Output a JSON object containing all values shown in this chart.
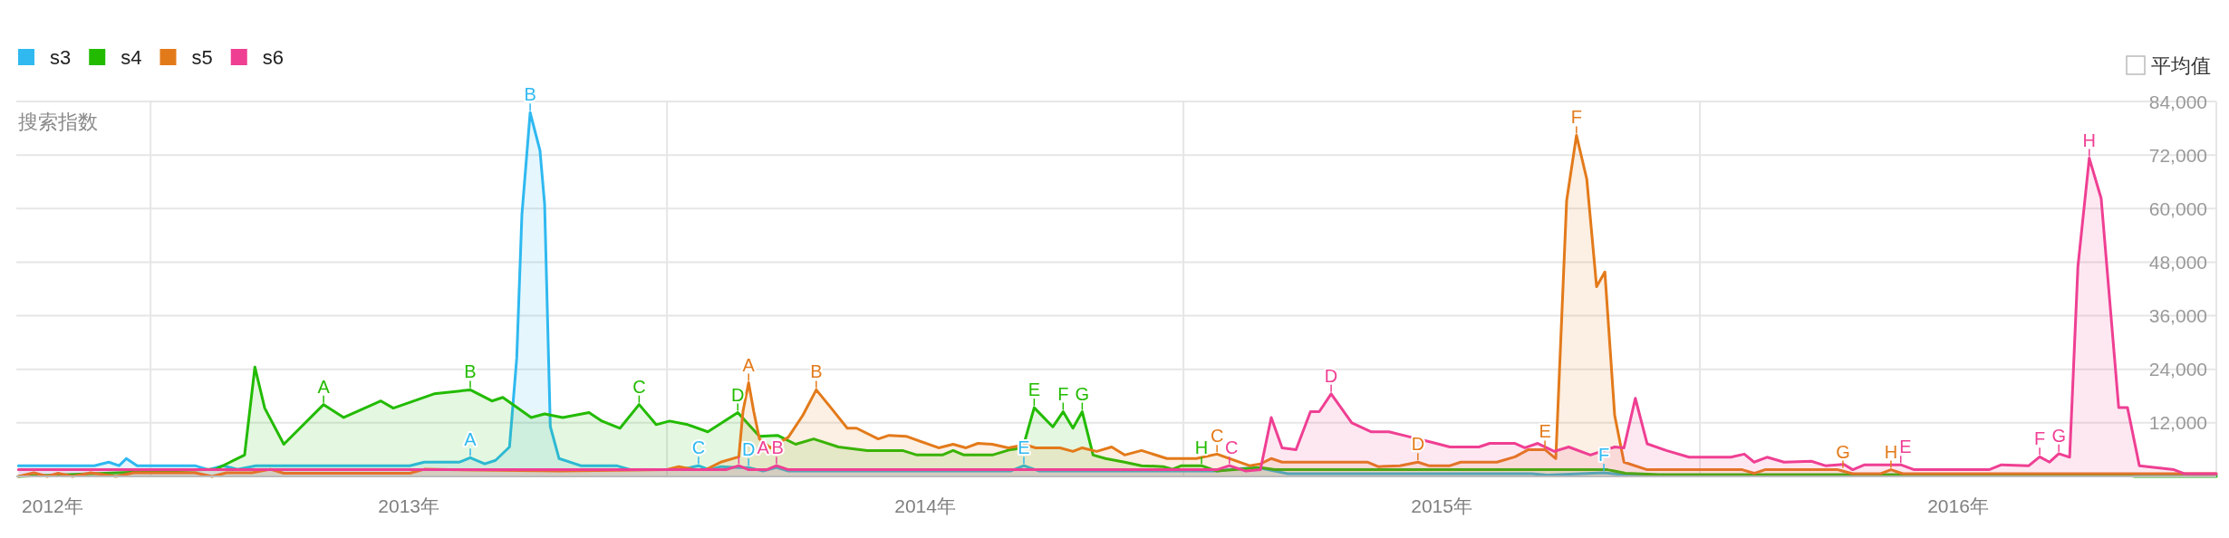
{
  "chart_data": {
    "type": "area",
    "ylabel": "搜索指数",
    "legend": "top left",
    "grid": true,
    "xlim": [
      2012.24,
      2016.5
    ],
    "xticks": [
      {
        "value": 2012.31,
        "label": "2012年"
      },
      {
        "value": 2012.5,
        "label": null
      },
      {
        "value": 2013,
        "label": "2013年"
      },
      {
        "value": 2013.5,
        "label": null
      },
      {
        "value": 2014,
        "label": "2014年"
      },
      {
        "value": 2014.5,
        "label": null
      },
      {
        "value": 2015,
        "label": "2015年"
      },
      {
        "value": 2015.5,
        "label": null
      },
      {
        "value": 2016,
        "label": "2016年"
      }
    ],
    "ylim": [
      0,
      84000
    ],
    "yticks": [
      {
        "value": 12000,
        "label": "12,000"
      },
      {
        "value": 24000,
        "label": "24,000"
      },
      {
        "value": 36000,
        "label": "36,000"
      },
      {
        "value": 48000,
        "label": "48,000"
      },
      {
        "value": 60000,
        "label": "60,000"
      },
      {
        "value": 72000,
        "label": "72,000"
      },
      {
        "value": 84000,
        "label": "84,000"
      }
    ],
    "series": [
      {
        "name": "s3",
        "color": "#2fb9f0",
        "x": [
          2012.244,
          2012.391,
          2012.419,
          2012.439,
          2012.453,
          2012.474,
          2012.586,
          2012.612,
          2012.64,
          2012.668,
          2012.704,
          2013.002,
          2013.03,
          2013.098,
          2013.119,
          2013.147,
          2013.168,
          2013.195,
          2013.209,
          2013.219,
          2013.235,
          2013.254,
          2013.263,
          2013.274,
          2013.291,
          2013.333,
          2013.402,
          2013.43,
          2013.526,
          2013.561,
          2013.582,
          2013.604,
          2013.639,
          2013.658,
          2013.686,
          2013.712,
          2013.735,
          2014.165,
          2014.191,
          2014.221,
          2014.565,
          2014.593,
          2014.642,
          2014.702,
          2015.175,
          2015.204,
          2015.314,
          2015.368,
          2016.5
        ],
        "values": [
          2400,
          2400,
          3200,
          2400,
          4000,
          2400,
          2400,
          1500,
          2400,
          1600,
          2400,
          2400,
          3200,
          3200,
          4200,
          2800,
          3600,
          6600,
          26500,
          58600,
          81500,
          73000,
          61000,
          11200,
          4000,
          2400,
          2400,
          1500,
          1500,
          2400,
          1500,
          2200,
          2000,
          2000,
          1200,
          2000,
          1200,
          1200,
          2400,
          1200,
          1200,
          1600,
          2000,
          600,
          600,
          300,
          800,
          200,
          200
        ]
      },
      {
        "name": "s4",
        "color": "#22bb00",
        "x": [
          2012.244,
          2012.626,
          2012.654,
          2012.682,
          2012.702,
          2012.721,
          2012.758,
          2012.835,
          2012.874,
          2012.946,
          2012.97,
          2013.049,
          2013.119,
          2013.161,
          2013.182,
          2013.237,
          2013.263,
          2013.298,
          2013.349,
          2013.374,
          2013.409,
          2013.446,
          2013.479,
          2013.505,
          2013.54,
          2013.579,
          2013.637,
          2013.679,
          2013.714,
          2013.749,
          2013.784,
          2013.832,
          2013.888,
          2013.956,
          2013.984,
          2014.033,
          2014.054,
          2014.075,
          2014.13,
          2014.165,
          2014.189,
          2014.211,
          2014.247,
          2014.267,
          2014.286,
          2014.304,
          2014.325,
          2014.349,
          2014.386,
          2014.419,
          2014.461,
          2014.479,
          2014.496,
          2014.535,
          2014.565,
          2014.649,
          2014.677,
          2015.321,
          2015.356,
          2015.421,
          2016.321,
          2016.342,
          2016.5
        ],
        "values": [
          0,
          1600,
          3200,
          4800,
          24500,
          15300,
          7200,
          16100,
          13200,
          16900,
          15300,
          18500,
          19400,
          16900,
          17700,
          13200,
          14000,
          13200,
          14300,
          12400,
          10800,
          16100,
          11600,
          12400,
          11600,
          10000,
          14300,
          9000,
          9200,
          7200,
          8400,
          6600,
          5800,
          5800,
          4800,
          4800,
          5800,
          4800,
          4800,
          6000,
          6400,
          15400,
          11100,
          14500,
          10800,
          14500,
          4800,
          4000,
          3200,
          2400,
          2200,
          1600,
          2400,
          2400,
          1200,
          2000,
          1500,
          1500,
          700,
          400,
          400,
          0,
          0
        ]
      },
      {
        "name": "s5",
        "color": "#e37a1a",
        "x": [
          2012.244,
          2012.274,
          2012.3,
          2012.321,
          2012.349,
          2012.384,
          2012.433,
          2012.467,
          2012.586,
          2012.619,
          2012.647,
          2012.696,
          2012.732,
          2012.758,
          2013.002,
          2013.03,
          2013.293,
          2013.498,
          2013.523,
          2013.554,
          2013.575,
          2013.604,
          2013.639,
          2013.647,
          2013.658,
          2013.668,
          2013.679,
          2013.7,
          2013.735,
          2013.763,
          2013.789,
          2013.818,
          2013.849,
          2013.867,
          2013.909,
          2013.93,
          2013.963,
          2014.026,
          2014.054,
          2014.079,
          2014.102,
          2014.13,
          2014.161,
          2014.193,
          2014.214,
          2014.261,
          2014.286,
          2014.304,
          2014.332,
          2014.361,
          2014.386,
          2014.419,
          2014.468,
          2014.525,
          2014.565,
          2014.628,
          2014.649,
          2014.67,
          2014.691,
          2014.856,
          2014.877,
          2014.919,
          2014.954,
          2014.975,
          2015.016,
          2015.037,
          2015.107,
          2015.142,
          2015.168,
          2015.2,
          2015.221,
          2015.242,
          2015.261,
          2015.281,
          2015.3,
          2015.316,
          2015.335,
          2015.353,
          2015.398,
          2015.582,
          2015.605,
          2015.626,
          2015.767,
          2015.796,
          2015.849,
          2015.87,
          2015.893,
          2016.5
        ],
        "values": [
          0,
          800,
          0,
          700,
          0,
          800,
          0,
          800,
          800,
          0,
          800,
          800,
          1600,
          700,
          700,
          1600,
          1200,
          1500,
          2200,
          1500,
          1500,
          3200,
          4400,
          14500,
          21000,
          14500,
          8400,
          6400,
          8800,
          13700,
          19400,
          15300,
          10800,
          10800,
          8400,
          9200,
          9000,
          6400,
          7200,
          6400,
          7400,
          7200,
          6400,
          7100,
          6400,
          6400,
          5600,
          6400,
          5600,
          6600,
          4800,
          5800,
          4000,
          4000,
          5000,
          2400,
          2800,
          4000,
          3200,
          3200,
          2200,
          2400,
          3200,
          2400,
          2400,
          3200,
          3200,
          4400,
          6000,
          6000,
          4000,
          61800,
          76400,
          66600,
          42500,
          45800,
          13700,
          3200,
          1500,
          1500,
          700,
          1500,
          1500,
          600,
          600,
          1500,
          600,
          600
        ]
      },
      {
        "name": "s6",
        "color": "#ef3f93",
        "x": [
          2012.244,
          2013.614,
          2013.639,
          2013.658,
          2013.693,
          2013.712,
          2013.735,
          2014.565,
          2014.589,
          2014.621,
          2014.649,
          2014.67,
          2014.691,
          2014.718,
          2014.746,
          2014.763,
          2014.786,
          2014.826,
          2014.863,
          2014.898,
          2014.933,
          2014.982,
          2015.016,
          2015.072,
          2015.093,
          2015.142,
          2015.161,
          2015.186,
          2015.218,
          2015.246,
          2015.288,
          2015.335,
          2015.353,
          2015.375,
          2015.398,
          2015.435,
          2015.479,
          2015.56,
          2015.586,
          2015.605,
          2015.63,
          2015.663,
          2015.716,
          2015.743,
          2015.779,
          2015.796,
          2015.819,
          2015.889,
          2015.915,
          2016.06,
          2016.084,
          2016.137,
          2016.158,
          2016.177,
          2016.195,
          2016.216,
          2016.232,
          2016.254,
          2016.277,
          2016.311,
          2016.328,
          2016.351,
          2016.418,
          2016.439,
          2016.5
        ],
        "values": [
          1500,
          1500,
          2400,
          1500,
          1500,
          2400,
          1500,
          1500,
          2400,
          1200,
          1500,
          13200,
          6400,
          6000,
          14500,
          14500,
          18500,
          12000,
          10000,
          10000,
          9000,
          7600,
          6600,
          6600,
          7400,
          7400,
          6400,
          7400,
          5600,
          6600,
          4800,
          6600,
          6400,
          17500,
          7300,
          5800,
          4300,
          4300,
          5000,
          3200,
          4300,
          3200,
          3400,
          2400,
          2700,
          1500,
          2600,
          2600,
          1500,
          1500,
          2600,
          2400,
          4400,
          3200,
          5100,
          4300,
          47000,
          71300,
          62300,
          15400,
          15400,
          2400,
          1500,
          600,
          600
        ]
      }
    ],
    "annotations": [
      "平均值",
      {
        "text": "A",
        "x": 2012.835,
        "y": 16100
      },
      {
        "text": "B",
        "x": 2013.119,
        "y": 19400
      },
      {
        "text": "C",
        "x": 2013.446,
        "y": 16100
      },
      {
        "text": "D",
        "x": 2013.637,
        "y": 14300
      },
      {
        "text": "E",
        "x": 2014.211,
        "y": 15400
      },
      {
        "text": "F",
        "x": 2014.267,
        "y": 14500
      },
      {
        "text": "G",
        "x": 2014.304,
        "y": 14500
      },
      {
        "text": "H",
        "x": 2014.535,
        "y": 2400
      },
      {
        "text": "A",
        "x": 2013.119,
        "y": 4200
      },
      {
        "text": "B",
        "x": 2013.235,
        "y": 81500
      },
      {
        "text": "C",
        "x": 2013.561,
        "y": 2400
      },
      {
        "text": "D",
        "x": 2013.658,
        "y": 2000
      },
      {
        "text": "E",
        "x": 2014.191,
        "y": 2400
      },
      {
        "text": "F",
        "x": 2015.314,
        "y": 800
      },
      {
        "text": "A",
        "x": 2013.658,
        "y": 21000
      },
      {
        "text": "B",
        "x": 2013.789,
        "y": 19400
      },
      {
        "text": "C",
        "x": 2014.565,
        "y": 5000
      },
      {
        "text": "D",
        "x": 2014.954,
        "y": 3200
      },
      {
        "text": "E",
        "x": 2015.2,
        "y": 6000
      },
      {
        "text": "F",
        "x": 2015.261,
        "y": 76400
      },
      {
        "text": "G",
        "x": 2015.777,
        "y": 1500
      },
      {
        "text": "H",
        "x": 2015.87,
        "y": 1500
      },
      {
        "text": "A",
        "x": 2013.639,
        "y": 2400
      },
      {
        "text": "B",
        "x": 2013.712,
        "y": 2400
      },
      {
        "text": "C",
        "x": 2014.589,
        "y": 2400
      },
      {
        "text": "D",
        "x": 2014.786,
        "y": 18500
      },
      {
        "text": "E",
        "x": 2015.889,
        "y": 2600
      },
      {
        "text": "F",
        "x": 2016.158,
        "y": 4400
      },
      {
        "text": "G",
        "x": 2016.195,
        "y": 5100
      },
      {
        "text": "H",
        "x": 2016.254,
        "y": 71300
      }
    ]
  }
}
